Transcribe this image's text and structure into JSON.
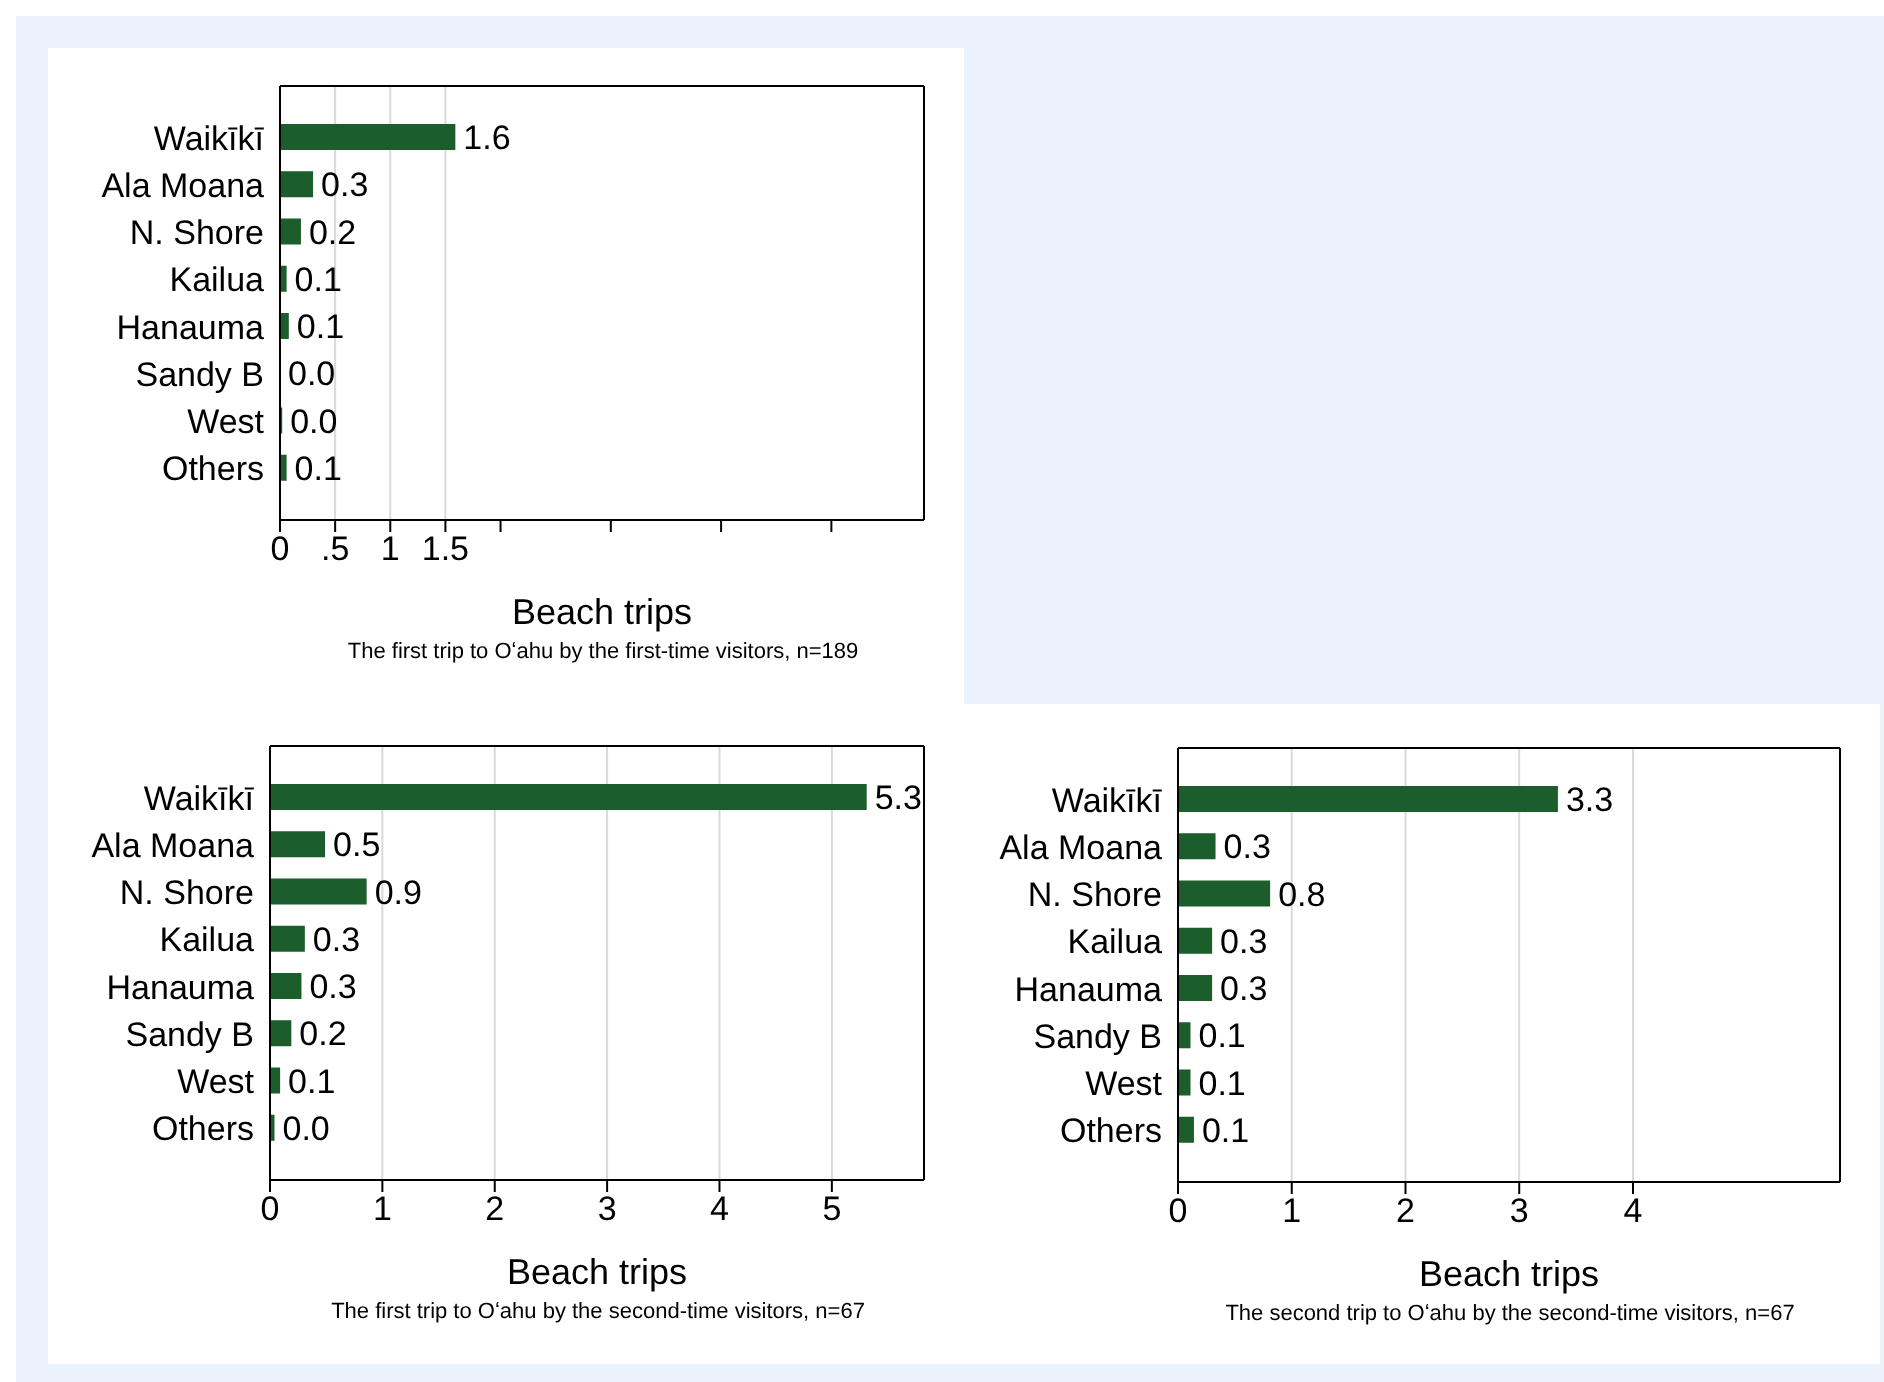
{
  "chart_data": [
    {
      "type": "bar",
      "orientation": "horizontal",
      "categories": [
        "Waikīkī",
        "Ala Moana",
        "N. Shore",
        "Kailua",
        "Hanauma",
        "Sandy B",
        "West",
        "Others"
      ],
      "values": [
        1.59,
        0.3,
        0.19,
        0.06,
        0.08,
        0,
        0.02,
        0.06
      ],
      "value_labels": [
        "1.6",
        "0.3",
        "0.2",
        "0.1",
        "0.1",
        "0.0",
        "0.0",
        "0.1"
      ],
      "color": "#1b5e2b",
      "xlabel": "Beach trips",
      "xlim": [
        0,
        5.84
      ],
      "xticks": [
        0,
        {
          "value": 0.5,
          "label": ".5"
        },
        1,
        1.5,
        {
          "value": 2,
          "label": null
        },
        {
          "value": 3,
          "label": null
        },
        {
          "value": 4,
          "label": null
        },
        {
          "value": 5,
          "label": null
        }
      ],
      "grid": "x",
      "annotations": [
        "The first trip to Oʻahu by the first-time visitors, n=189"
      ]
    },
    {
      "type": "bar",
      "orientation": "horizontal",
      "categories": [
        "Waikīkī",
        "Ala Moana",
        "N. Shore",
        "Kailua",
        "Hanauma",
        "Sandy B",
        "West",
        "Others"
      ],
      "values": [
        5.31,
        0.49,
        0.86,
        0.31,
        0.28,
        0.19,
        0.09,
        0.04
      ],
      "value_labels": [
        "5.3",
        "0.5",
        "0.9",
        "0.3",
        "0.3",
        "0.2",
        "0.1",
        "0.0"
      ],
      "color": "#1b5e2b",
      "xlabel": "Beach trips",
      "xlim": [
        0,
        5.82
      ],
      "xticks": [
        0,
        1,
        2,
        3,
        4,
        5
      ],
      "grid": "x",
      "annotations": [
        "The first trip to Oʻahu by the second-time visitors, n=67"
      ]
    },
    {
      "type": "bar",
      "orientation": "horizontal",
      "categories": [
        "Waikīkī",
        "Ala Moana",
        "N. Shore",
        "Kailua",
        "Hanauma",
        "Sandy B",
        "West",
        "Others"
      ],
      "values": [
        3.34,
        0.33,
        0.81,
        0.3,
        0.3,
        0.11,
        0.11,
        0.14
      ],
      "value_labels": [
        "3.3",
        "0.3",
        "0.8",
        "0.3",
        "0.3",
        "0.1",
        "0.1",
        "0.1"
      ],
      "color": "#1b5e2b",
      "xlabel": "Beach trips",
      "xlim": [
        0,
        5.82
      ],
      "xticks": [
        0,
        1,
        2,
        3,
        4
      ],
      "grid": "x",
      "annotations": [
        "The second trip to Oʻahu by the second-time visitors, n=67"
      ]
    }
  ]
}
